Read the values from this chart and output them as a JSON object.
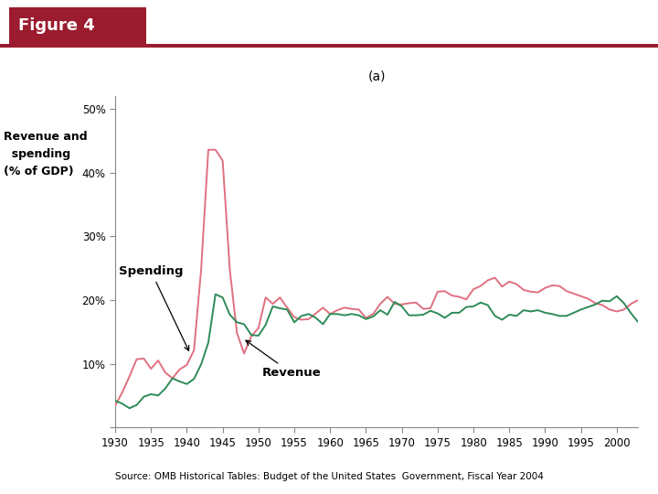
{
  "title_box": "Figure 4",
  "subtitle": "(a)",
  "ylabel_line1": "Revenue and",
  "ylabel_line2": "  spending",
  "ylabel_line3": "(% of GDP)",
  "source_text": "Source: OMB Historical Tables: Budget of the United States  Government, Fiscal Year 2004",
  "title_box_color": "#9B1C2E",
  "title_text_color": "#FFFFFF",
  "spending_color": "#E07080",
  "revenue_color": "#2E8B57",
  "line_width": 1.4,
  "spending_label": "Spending",
  "revenue_label": "Revenue",
  "xlim": [
    1930,
    2003
  ],
  "ylim": [
    0,
    52
  ],
  "yticks": [
    0,
    10,
    20,
    30,
    40,
    50
  ],
  "ytick_labels": [
    "",
    "10%",
    "20%",
    "30%",
    "40%",
    "50%"
  ],
  "xticks": [
    1930,
    1935,
    1940,
    1945,
    1950,
    1955,
    1960,
    1965,
    1970,
    1975,
    1980,
    1985,
    1990,
    1995,
    2000
  ],
  "years": [
    1930,
    1931,
    1932,
    1933,
    1934,
    1935,
    1936,
    1937,
    1938,
    1939,
    1940,
    1941,
    1942,
    1943,
    1944,
    1945,
    1946,
    1947,
    1948,
    1949,
    1950,
    1951,
    1952,
    1953,
    1954,
    1955,
    1956,
    1957,
    1958,
    1959,
    1960,
    1961,
    1962,
    1963,
    1964,
    1965,
    1966,
    1967,
    1968,
    1969,
    1970,
    1971,
    1972,
    1973,
    1974,
    1975,
    1976,
    1977,
    1978,
    1979,
    1980,
    1981,
    1982,
    1983,
    1984,
    1985,
    1986,
    1987,
    1988,
    1989,
    1990,
    1991,
    1992,
    1993,
    1994,
    1995,
    1996,
    1997,
    1998,
    1999,
    2000,
    2001,
    2002,
    2003
  ],
  "spending": [
    3.4,
    5.5,
    8.0,
    10.7,
    10.8,
    9.2,
    10.5,
    8.6,
    7.7,
    9.1,
    9.8,
    12.1,
    24.8,
    43.6,
    43.6,
    41.9,
    24.8,
    14.8,
    11.6,
    14.3,
    15.6,
    20.4,
    19.4,
    20.4,
    18.8,
    17.3,
    16.9,
    17.0,
    17.9,
    18.8,
    17.8,
    18.4,
    18.8,
    18.6,
    18.5,
    17.2,
    17.8,
    19.4,
    20.5,
    19.4,
    19.3,
    19.5,
    19.6,
    18.6,
    18.7,
    21.3,
    21.4,
    20.7,
    20.5,
    20.1,
    21.7,
    22.2,
    23.1,
    23.5,
    22.1,
    22.9,
    22.5,
    21.6,
    21.3,
    21.2,
    21.9,
    22.3,
    22.2,
    21.4,
    21.0,
    20.6,
    20.2,
    19.5,
    19.2,
    18.5,
    18.2,
    18.5,
    19.4,
    20.0
  ],
  "revenue": [
    4.2,
    3.7,
    3.0,
    3.5,
    4.8,
    5.2,
    5.0,
    6.1,
    7.7,
    7.2,
    6.8,
    7.6,
    9.9,
    13.3,
    20.9,
    20.4,
    17.7,
    16.5,
    16.2,
    14.5,
    14.4,
    16.1,
    19.0,
    18.7,
    18.5,
    16.5,
    17.5,
    17.8,
    17.2,
    16.2,
    17.8,
    17.8,
    17.6,
    17.8,
    17.6,
    17.0,
    17.4,
    18.4,
    17.7,
    19.7,
    19.0,
    17.6,
    17.6,
    17.7,
    18.3,
    17.9,
    17.2,
    18.0,
    18.0,
    18.9,
    19.0,
    19.6,
    19.2,
    17.5,
    16.9,
    17.7,
    17.5,
    18.4,
    18.2,
    18.4,
    18.0,
    17.8,
    17.5,
    17.5,
    18.0,
    18.5,
    18.9,
    19.3,
    19.9,
    19.8,
    20.6,
    19.5,
    17.9,
    16.5
  ]
}
